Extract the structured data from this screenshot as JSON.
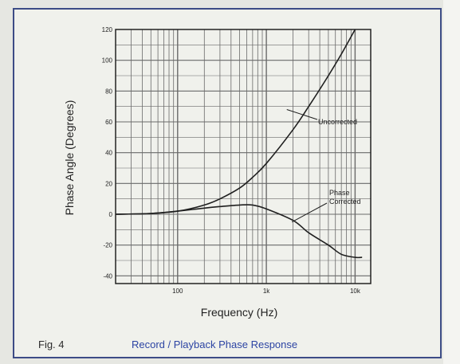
{
  "figure": {
    "label": "Fig. 4",
    "title": "Record / Playback Phase Response"
  },
  "colors": {
    "border": "#3d4c86",
    "title": "#2c44a3",
    "grid": "#6a6a6a",
    "curve": "#1f1f1f"
  },
  "chart_data": {
    "type": "line",
    "title": "",
    "xlabel": "Frequency (Hz)",
    "ylabel": "Phase Angle (Degrees)",
    "x_scale": "log",
    "xlim": [
      20,
      15000
    ],
    "ylim": [
      -45,
      120
    ],
    "grid": true,
    "x_ticks": [
      {
        "value": 100,
        "label": "100"
      },
      {
        "value": 1000,
        "label": "1k"
      },
      {
        "value": 10000,
        "label": "10k"
      }
    ],
    "y_ticks": [
      120,
      100,
      80,
      60,
      40,
      20,
      0,
      -20,
      -40
    ],
    "series": [
      {
        "name": "Uncorrected",
        "x": [
          20,
          50,
          100,
          200,
          300,
          500,
          700,
          1000,
          2000,
          3000,
          5000,
          7000,
          10000
        ],
        "y": [
          0,
          0.5,
          2,
          6,
          10,
          17,
          24,
          33,
          55,
          70,
          90,
          104,
          120
        ]
      },
      {
        "name": "Phase Corrected",
        "x": [
          20,
          50,
          100,
          200,
          300,
          500,
          700,
          1000,
          2000,
          3000,
          5000,
          7000,
          10000,
          12000
        ],
        "y": [
          0,
          0.5,
          2,
          4,
          5,
          6,
          6,
          3.5,
          -4,
          -12,
          -20,
          -26,
          -28,
          -28
        ]
      }
    ],
    "annotations": [
      {
        "text": "Uncorrected",
        "series": "Uncorrected",
        "at_x": 1700,
        "at_y": 68
      },
      {
        "text": "Phase Corrected",
        "series": "Phase Corrected",
        "at_x": 2200,
        "at_y": -4
      }
    ]
  }
}
